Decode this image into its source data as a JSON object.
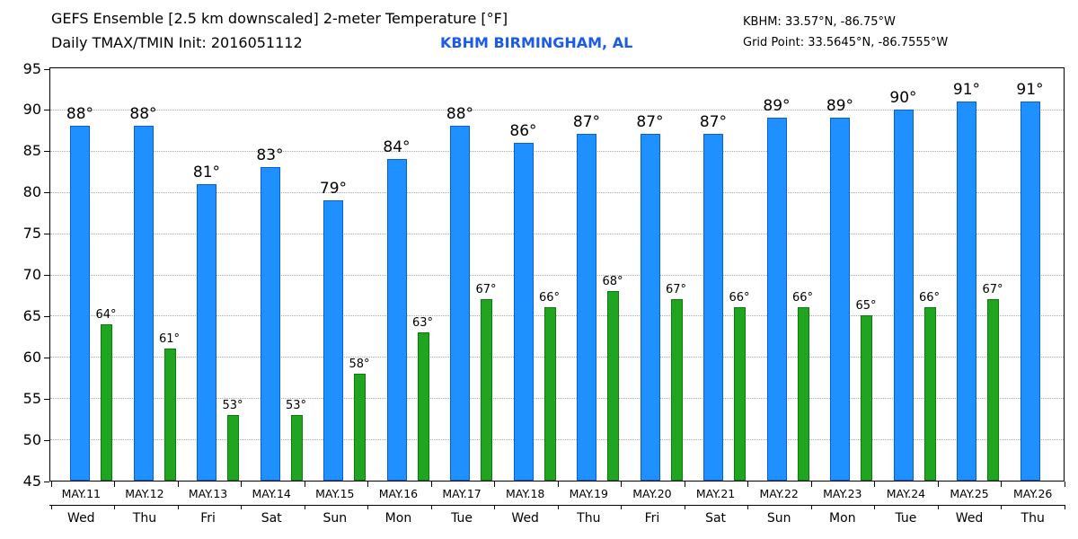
{
  "chart_data": {
    "type": "bar",
    "title": "GEFS Ensemble [2.5 km downscaled] 2-meter Temperature [°F]",
    "subtitle": "Daily TMAX/TMIN Init: 2016051112",
    "station": "KBHM BIRMINGHAM, AL",
    "station_coords": "KBHM: 33.57°N, -86.75°W",
    "grid_point": "Grid Point: 33.5645°N, -86.7555°W",
    "unit": "°",
    "ylim": [
      45,
      95
    ],
    "yticks": [
      45,
      50,
      55,
      60,
      65,
      70,
      75,
      80,
      85,
      90,
      95
    ],
    "grid": "horizontal-dotted",
    "legend": "none",
    "categories": [
      "MAY.11",
      "MAY.12",
      "MAY.13",
      "MAY.14",
      "MAY.15",
      "MAY.16",
      "MAY.17",
      "MAY.18",
      "MAY.19",
      "MAY.20",
      "MAY.21",
      "MAY.22",
      "MAY.23",
      "MAY.24",
      "MAY.25",
      "MAY.26"
    ],
    "day_labels": [
      "Wed",
      "Thu",
      "Fri",
      "Sat",
      "Sun",
      "Mon",
      "Tue",
      "Wed",
      "Thu",
      "Fri",
      "Sat",
      "Sun",
      "Mon",
      "Tue",
      "Wed",
      "Thu"
    ],
    "series": [
      {
        "name": "TMAX",
        "color": "#1E90FF",
        "edge": "#0B5ED7",
        "values": [
          88,
          88,
          81,
          83,
          79,
          84,
          88,
          86,
          87,
          87,
          87,
          89,
          89,
          90,
          91,
          91
        ]
      },
      {
        "name": "TMIN",
        "color": "#1FA51F",
        "edge": "#0E7A0E",
        "values": [
          64,
          61,
          53,
          53,
          58,
          63,
          67,
          66,
          68,
          67,
          66,
          66,
          65,
          66,
          67,
          null
        ]
      }
    ],
    "colors": {
      "station_text": "#1A5CE8",
      "text": "#000000",
      "grid": "#A8A8A8",
      "background": "#FFFFFF"
    }
  }
}
